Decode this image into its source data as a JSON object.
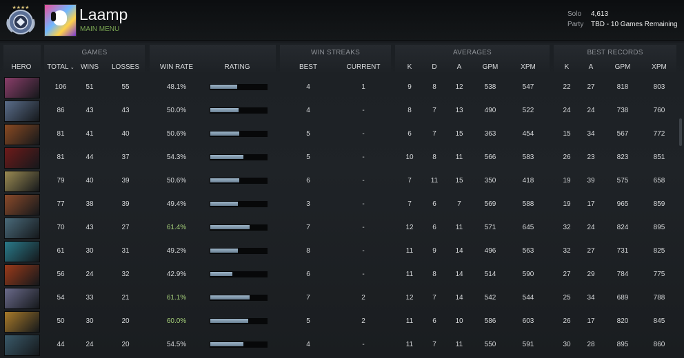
{
  "header": {
    "player_name": "Laamp",
    "main_menu": "MAIN MENU",
    "solo_label": "Solo",
    "solo_value": "4,613",
    "party_label": "Party",
    "party_value": "TBD - 10 Games Remaining"
  },
  "columns": {
    "hero": "HERO",
    "games": {
      "title": "GAMES",
      "total": "TOTAL",
      "wins": "WINS",
      "losses": "LOSSES"
    },
    "win_rate": "WIN RATE",
    "rating": "RATING",
    "win_streaks": {
      "title": "WIN STREAKS",
      "best": "BEST",
      "current": "CURRENT"
    },
    "averages": {
      "title": "AVERAGES",
      "k": "K",
      "d": "D",
      "a": "A",
      "gpm": "GPM",
      "xpm": "XPM"
    },
    "best_records": {
      "title": "BEST RECORDS",
      "k": "K",
      "a": "A",
      "gpm": "GPM",
      "xpm": "XPM"
    }
  },
  "colors": {
    "accent_green": "#7aa652",
    "winrate_good": "#a6d07a",
    "rating_bar": "#7f97ab"
  },
  "rows": [
    {
      "portrait_color": "#8a3e6a",
      "total": "106",
      "wins": "51",
      "losses": "55",
      "winrate": "48.1%",
      "good": false,
      "rating": 0.48,
      "best": "4",
      "current": "1",
      "k": "9",
      "d": "8",
      "a": "12",
      "gpm": "538",
      "xpm": "547",
      "bk": "22",
      "ba": "27",
      "bgpm": "818",
      "bxpm": "803"
    },
    {
      "portrait_color": "#5a6d8a",
      "total": "86",
      "wins": "43",
      "losses": "43",
      "winrate": "50.0%",
      "good": false,
      "rating": 0.5,
      "best": "4",
      "current": "-",
      "k": "8",
      "d": "7",
      "a": "13",
      "gpm": "490",
      "xpm": "522",
      "bk": "24",
      "ba": "24",
      "bgpm": "738",
      "bxpm": "760"
    },
    {
      "portrait_color": "#8a4a22",
      "total": "81",
      "wins": "41",
      "losses": "40",
      "winrate": "50.6%",
      "good": false,
      "rating": 0.51,
      "best": "5",
      "current": "-",
      "k": "6",
      "d": "7",
      "a": "15",
      "gpm": "363",
      "xpm": "454",
      "bk": "15",
      "ba": "34",
      "bgpm": "567",
      "bxpm": "772"
    },
    {
      "portrait_color": "#6e1a1a",
      "total": "81",
      "wins": "44",
      "losses": "37",
      "winrate": "54.3%",
      "good": false,
      "rating": 0.58,
      "best": "5",
      "current": "-",
      "k": "10",
      "d": "8",
      "a": "11",
      "gpm": "566",
      "xpm": "583",
      "bk": "26",
      "ba": "23",
      "bgpm": "823",
      "bxpm": "851"
    },
    {
      "portrait_color": "#9a8a52",
      "total": "79",
      "wins": "40",
      "losses": "39",
      "winrate": "50.6%",
      "good": false,
      "rating": 0.51,
      "best": "6",
      "current": "-",
      "k": "7",
      "d": "11",
      "a": "15",
      "gpm": "350",
      "xpm": "418",
      "bk": "19",
      "ba": "39",
      "bgpm": "575",
      "bxpm": "658"
    },
    {
      "portrait_color": "#8a4a2a",
      "total": "77",
      "wins": "38",
      "losses": "39",
      "winrate": "49.4%",
      "good": false,
      "rating": 0.49,
      "best": "3",
      "current": "-",
      "k": "7",
      "d": "6",
      "a": "7",
      "gpm": "569",
      "xpm": "588",
      "bk": "19",
      "ba": "17",
      "bgpm": "965",
      "bxpm": "859"
    },
    {
      "portrait_color": "#4a6a7a",
      "total": "70",
      "wins": "43",
      "losses": "27",
      "winrate": "61.4%",
      "good": true,
      "rating": 0.7,
      "best": "7",
      "current": "-",
      "k": "12",
      "d": "6",
      "a": "11",
      "gpm": "571",
      "xpm": "645",
      "bk": "32",
      "ba": "24",
      "bgpm": "824",
      "bxpm": "895"
    },
    {
      "portrait_color": "#2a7a8a",
      "total": "61",
      "wins": "30",
      "losses": "31",
      "winrate": "49.2%",
      "good": false,
      "rating": 0.49,
      "best": "8",
      "current": "-",
      "k": "11",
      "d": "9",
      "a": "14",
      "gpm": "496",
      "xpm": "563",
      "bk": "32",
      "ba": "27",
      "bgpm": "731",
      "bxpm": "825"
    },
    {
      "portrait_color": "#9a3a1a",
      "total": "56",
      "wins": "24",
      "losses": "32",
      "winrate": "42.9%",
      "good": false,
      "rating": 0.39,
      "best": "6",
      "current": "-",
      "k": "11",
      "d": "8",
      "a": "14",
      "gpm": "514",
      "xpm": "590",
      "bk": "27",
      "ba": "29",
      "bgpm": "784",
      "bxpm": "775"
    },
    {
      "portrait_color": "#6a6a8a",
      "total": "54",
      "wins": "33",
      "losses": "21",
      "winrate": "61.1%",
      "good": true,
      "rating": 0.69,
      "best": "7",
      "current": "2",
      "k": "12",
      "d": "7",
      "a": "14",
      "gpm": "542",
      "xpm": "544",
      "bk": "25",
      "ba": "34",
      "bgpm": "689",
      "bxpm": "788"
    },
    {
      "portrait_color": "#a87a2a",
      "total": "50",
      "wins": "30",
      "losses": "20",
      "winrate": "60.0%",
      "good": true,
      "rating": 0.67,
      "best": "5",
      "current": "2",
      "k": "11",
      "d": "6",
      "a": "10",
      "gpm": "586",
      "xpm": "603",
      "bk": "26",
      "ba": "17",
      "bgpm": "820",
      "bxpm": "845"
    },
    {
      "portrait_color": "#3a5a6a",
      "total": "44",
      "wins": "24",
      "losses": "20",
      "winrate": "54.5%",
      "good": false,
      "rating": 0.58,
      "best": "4",
      "current": "-",
      "k": "11",
      "d": "7",
      "a": "11",
      "gpm": "550",
      "xpm": "591",
      "bk": "30",
      "ba": "28",
      "bgpm": "895",
      "bxpm": "860"
    }
  ]
}
